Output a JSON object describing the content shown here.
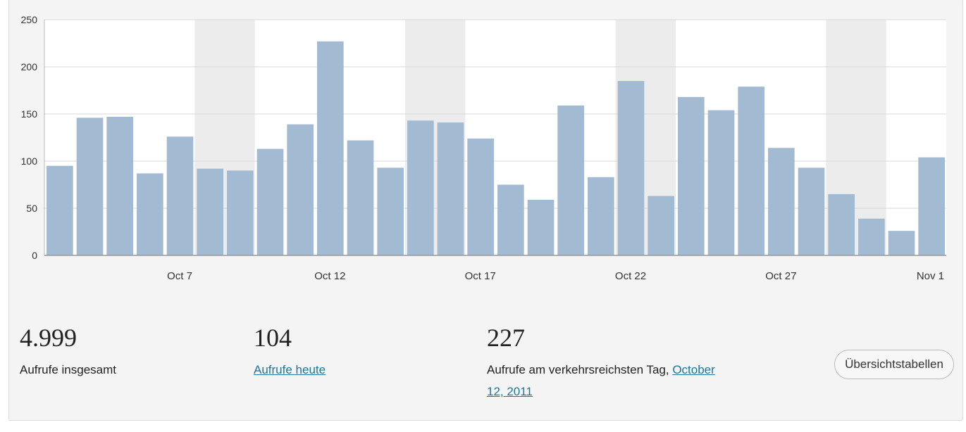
{
  "chart_data": {
    "type": "bar",
    "ylim": [
      0,
      250
    ],
    "yticks": [
      0,
      50,
      100,
      150,
      200,
      250
    ],
    "values": [
      95,
      146,
      147,
      87,
      126,
      92,
      90,
      113,
      139,
      227,
      122,
      93,
      143,
      141,
      124,
      75,
      59,
      159,
      83,
      185,
      63,
      168,
      154,
      179,
      114,
      93,
      65,
      39,
      26,
      104
    ],
    "x_labels": [
      {
        "index": 4,
        "label": "Oct 7"
      },
      {
        "index": 9,
        "label": "Oct 12"
      },
      {
        "index": 14,
        "label": "Oct 17"
      },
      {
        "index": 19,
        "label": "Oct 22"
      },
      {
        "index": 24,
        "label": "Oct 27"
      },
      {
        "index": 29,
        "label": "Nov 1"
      }
    ],
    "weekend_bands": [
      [
        5,
        6
      ],
      [
        12,
        13
      ],
      [
        19,
        20
      ],
      [
        26,
        27
      ]
    ],
    "grid": true,
    "bar_color": "#a3bad3",
    "weekend_color": "#ececec"
  },
  "stats": {
    "total_value": "4.999",
    "total_label": "Aufrufe insgesamt",
    "today_value": "104",
    "today_label": "Aufrufe heute",
    "best_value": "227",
    "best_label": "Aufrufe am verkehrsreichsten Tag,",
    "best_date": "October 12, 2011"
  },
  "button": {
    "label": "Übersichtstabellen"
  }
}
